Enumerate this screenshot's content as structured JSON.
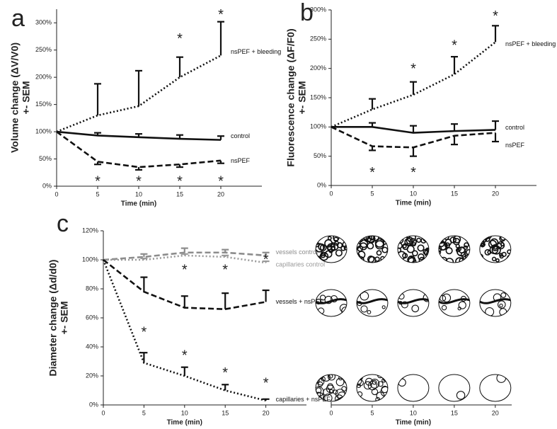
{
  "chart_data": [
    {
      "type": "line",
      "panel": "a",
      "x_label": "Time (min)",
      "y_label": [
        "Volume change (ΔV/V0)",
        "+- SEM"
      ],
      "x": [
        0,
        5,
        10,
        15,
        20
      ],
      "xlim": [
        0,
        25
      ],
      "xticks": [
        0,
        5,
        10,
        15,
        20
      ],
      "ylim": [
        0,
        325
      ],
      "yticks": [
        {
          "value": 0,
          "label": "0%"
        },
        {
          "value": 50,
          "label": "50%"
        },
        {
          "value": 100,
          "label": "100%"
        },
        {
          "value": 150,
          "label": "150%"
        },
        {
          "value": 200,
          "label": "200%"
        },
        {
          "value": 250,
          "label": "250%"
        },
        {
          "value": 300,
          "label": "300%"
        }
      ],
      "series": [
        {
          "name": "nsPEF + bleeding",
          "color": "#111111",
          "dash": "dotted",
          "error_direction": "up",
          "values": [
            100,
            130,
            147,
            200,
            240
          ],
          "errors": [
            0,
            58,
            65,
            37,
            62
          ]
        },
        {
          "name": "control",
          "color": "#111111",
          "dash": "solid",
          "error_direction": "up",
          "values": [
            100,
            93,
            90,
            87,
            85
          ],
          "errors": [
            0,
            5,
            6,
            7,
            7
          ]
        },
        {
          "name": "nsPEF",
          "color": "#111111",
          "dash": "dashed",
          "error_direction": "down",
          "values": [
            100,
            45,
            35,
            40,
            47
          ],
          "errors": [
            0,
            5,
            5,
            5,
            5
          ]
        }
      ],
      "annotations": [
        {
          "text": "*",
          "x": 15,
          "y": 276
        },
        {
          "text": "*",
          "x": 20,
          "y": 320
        },
        {
          "text": "*",
          "x": 5,
          "y": 14
        },
        {
          "text": "*",
          "x": 10,
          "y": 14
        },
        {
          "text": "*",
          "x": 15,
          "y": 14
        },
        {
          "text": "*",
          "x": 20,
          "y": 14
        }
      ]
    },
    {
      "type": "line",
      "panel": "b",
      "x_label": "Time (min)",
      "y_label": [
        "Fluorescence change (ΔF/F0)",
        "+- SEM"
      ],
      "x": [
        0,
        5,
        10,
        15,
        20
      ],
      "xlim": [
        0,
        25
      ],
      "xticks": [
        0,
        5,
        10,
        15,
        20
      ],
      "ylim": [
        0,
        300
      ],
      "yticks": [
        {
          "value": 0,
          "label": "0%"
        },
        {
          "value": 50,
          "label": "50%"
        },
        {
          "value": 100,
          "label": "100%"
        },
        {
          "value": 150,
          "label": "150%"
        },
        {
          "value": 200,
          "label": "200%"
        },
        {
          "value": 250,
          "label": "250%"
        },
        {
          "value": 300,
          "label": "300%"
        }
      ],
      "series": [
        {
          "name": "nsPEF + bleeding",
          "color": "#111111",
          "dash": "dotted",
          "error_direction": "up",
          "values": [
            100,
            130,
            155,
            190,
            245
          ],
          "errors": [
            0,
            18,
            22,
            30,
            28
          ]
        },
        {
          "name": "control",
          "color": "#111111",
          "dash": "solid",
          "error_direction": "up",
          "values": [
            100,
            100,
            90,
            93,
            95
          ],
          "errors": [
            0,
            7,
            12,
            12,
            15
          ]
        },
        {
          "name": "nsPEF",
          "color": "#111111",
          "dash": "dashed",
          "error_direction": "down",
          "values": [
            100,
            67,
            65,
            85,
            90
          ],
          "errors": [
            0,
            7,
            15,
            15,
            15
          ]
        }
      ],
      "annotations": [
        {
          "text": "*",
          "x": 10,
          "y": 204
        },
        {
          "text": "*",
          "x": 15,
          "y": 244
        },
        {
          "text": "*",
          "x": 20,
          "y": 294
        },
        {
          "text": "*",
          "x": 5,
          "y": 27
        },
        {
          "text": "*",
          "x": 10,
          "y": 27
        }
      ]
    },
    {
      "type": "line",
      "panel": "c",
      "x_label": "Time (min)",
      "y_label": [
        "Diameter change (Δd/d0)",
        "+- SEM"
      ],
      "x": [
        0,
        5,
        10,
        15,
        20
      ],
      "xlim": [
        0,
        25
      ],
      "xticks": [
        0,
        5,
        10,
        15,
        20
      ],
      "ylim": [
        0,
        120
      ],
      "yticks": [
        {
          "value": 0,
          "label": "0%"
        },
        {
          "value": 20,
          "label": "20%"
        },
        {
          "value": 40,
          "label": "40%"
        },
        {
          "value": 60,
          "label": "60%"
        },
        {
          "value": 80,
          "label": "80%"
        },
        {
          "value": 100,
          "label": "100%"
        },
        {
          "value": 120,
          "label": "120%"
        }
      ],
      "series": [
        {
          "name": "vessels control",
          "color": "#8c8c8c",
          "dash": "dashed",
          "error_direction": "up",
          "values": [
            100,
            102,
            105,
            105,
            103
          ],
          "errors": [
            0,
            2,
            3,
            2,
            2
          ]
        },
        {
          "name": "capillaries control",
          "color": "#9a9a9a",
          "dash": "dotted",
          "error_direction": "up",
          "values": [
            100,
            100,
            103,
            102,
            98
          ],
          "errors": [
            0,
            1,
            1,
            1,
            1
          ]
        },
        {
          "name": "vessels + nsPEF",
          "color": "#111111",
          "dash": "dashed",
          "error_direction": "up",
          "values": [
            100,
            78,
            67,
            66,
            71
          ],
          "errors": [
            0,
            10,
            8,
            11,
            8
          ]
        },
        {
          "name": "capillaries + nsPEF",
          "color": "#111111",
          "dash": "dotted",
          "error_direction": "up",
          "values": [
            100,
            29,
            20,
            10,
            3
          ],
          "errors": [
            0,
            7,
            6,
            4,
            1
          ]
        }
      ],
      "annotations": [
        {
          "text": "*",
          "x": 5,
          "y": 52
        },
        {
          "text": "*",
          "x": 10,
          "y": 95
        },
        {
          "text": "*",
          "x": 15,
          "y": 95
        },
        {
          "text": "*",
          "x": 20,
          "y": 102
        },
        {
          "text": "*",
          "x": 10,
          "y": 36
        },
        {
          "text": "*",
          "x": 15,
          "y": 24
        },
        {
          "text": "*",
          "x": 20,
          "y": 17
        }
      ]
    },
    {
      "type": "image-strip",
      "x_label": "Time (min)",
      "xlim": [
        0,
        22
      ],
      "xticks": [
        0,
        5,
        10,
        15,
        20
      ]
    }
  ]
}
